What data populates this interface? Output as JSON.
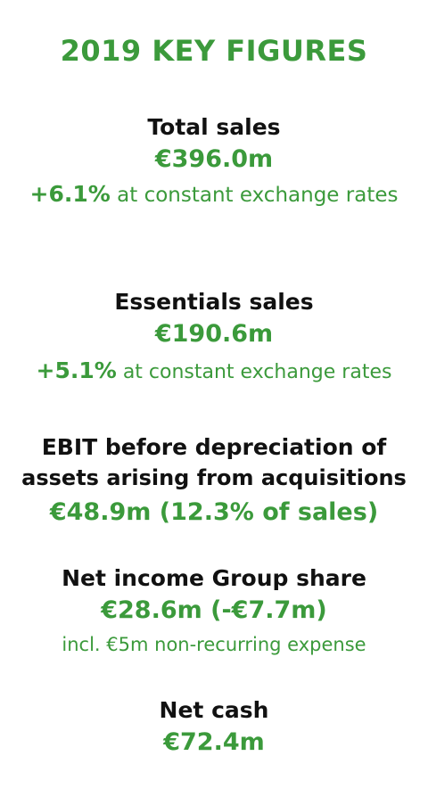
{
  "title": "2019 KEY FIGURES",
  "colors": {
    "accent": "#3b9a3b",
    "text": "#111111"
  },
  "figures": [
    {
      "label": "Total sales",
      "value": "€396.0m",
      "change": "+6.1%",
      "change_suffix": " at constant exchange rates"
    },
    {
      "label": "Essentials sales",
      "value": "€190.6m",
      "change": "+5.1%",
      "change_suffix": " at constant exchange rates"
    },
    {
      "label_line1": "EBIT before depreciation of",
      "label_line2": "assets arising from acquisitions",
      "value": "€48.9m (12.3% of sales)"
    },
    {
      "label": "Net income Group share",
      "value": "€28.6m (-€7.7m)",
      "note": "incl. €5m non-recurring expense"
    },
    {
      "label": "Net cash",
      "value": "€72.4m"
    }
  ]
}
